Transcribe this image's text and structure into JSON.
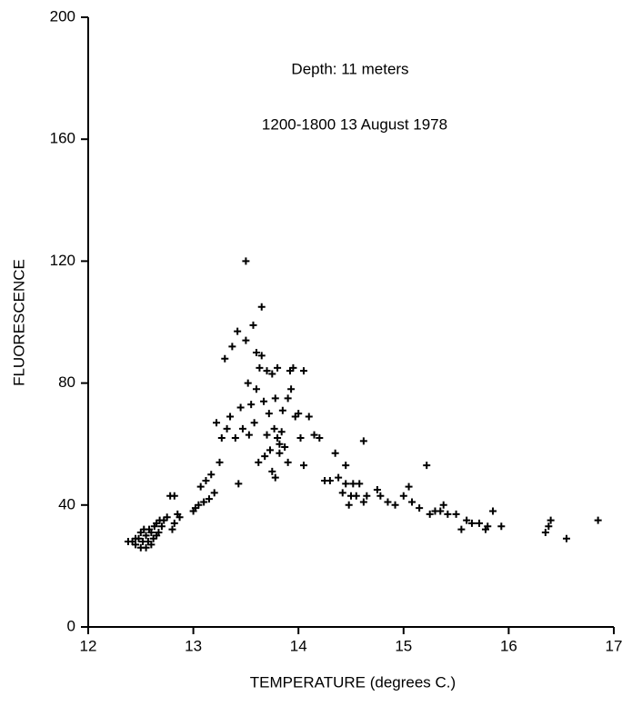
{
  "chart_data": {
    "type": "scatter",
    "annotations": [
      "Depth: 11 meters",
      "1200-1800  13 August 1978"
    ],
    "x_label": "TEMPERATURE (degrees C.)",
    "y_label": "FLUORESCENCE",
    "xlim": [
      12,
      17
    ],
    "xticks": [
      12,
      13,
      14,
      15,
      16,
      17
    ],
    "ylim": [
      0,
      200
    ],
    "yticks": [
      0,
      40,
      80,
      120,
      160,
      200
    ],
    "color": "#000000",
    "x": [
      12.38,
      12.42,
      12.45,
      12.48,
      12.5,
      12.52,
      12.55,
      12.55,
      12.58,
      12.6,
      12.6,
      12.62,
      12.63,
      12.65,
      12.65,
      12.68,
      12.7,
      12.72,
      12.75,
      12.78,
      12.82,
      12.8,
      12.82,
      12.85,
      12.87,
      12.5,
      12.57,
      12.45,
      12.53,
      12.67,
      13.0,
      13.02,
      13.05,
      13.07,
      13.1,
      13.12,
      13.15,
      13.17,
      13.2,
      13.22,
      13.25,
      13.27,
      13.3,
      13.32,
      13.35,
      13.37,
      13.4,
      13.42,
      13.43,
      13.45,
      13.47,
      13.5,
      13.5,
      13.52,
      13.53,
      13.55,
      13.57,
      13.58,
      13.6,
      13.6,
      13.62,
      13.63,
      13.65,
      13.65,
      13.67,
      13.68,
      13.7,
      13.7,
      13.72,
      13.73,
      13.75,
      13.75,
      13.77,
      13.78,
      13.78,
      13.8,
      13.8,
      13.82,
      13.82,
      13.84,
      13.85,
      13.87,
      13.9,
      13.9,
      13.92,
      13.93,
      13.95,
      13.97,
      14.0,
      14.02,
      14.05,
      14.05,
      14.1,
      14.15,
      14.2,
      14.25,
      14.3,
      14.35,
      14.38,
      14.42,
      14.45,
      14.45,
      14.48,
      14.5,
      14.52,
      14.55,
      14.58,
      14.62,
      14.62,
      14.65,
      14.75,
      14.78,
      14.85,
      14.92,
      15.0,
      15.05,
      15.08,
      15.15,
      15.22,
      15.25,
      15.3,
      15.35,
      15.38,
      15.42,
      15.5,
      15.55,
      15.6,
      15.65,
      15.72,
      15.78,
      15.8,
      15.85,
      15.93,
      16.35,
      16.38,
      16.4,
      16.55,
      16.85
    ],
    "values": [
      28,
      28,
      27,
      29,
      26,
      28,
      30,
      26,
      32,
      27,
      31,
      29,
      33,
      30,
      34,
      35,
      33,
      35,
      36,
      43,
      43,
      32,
      34,
      37,
      36,
      31,
      28,
      29,
      32,
      31,
      38,
      39,
      40,
      46,
      41,
      48,
      42,
      50,
      44,
      67,
      54,
      62,
      88,
      65,
      69,
      92,
      62,
      97,
      47,
      72,
      65,
      120,
      94,
      80,
      63,
      73,
      99,
      67,
      78,
      90,
      54,
      85,
      105,
      89,
      74,
      56,
      84,
      63,
      70,
      58,
      83,
      51,
      65,
      49,
      75,
      62,
      85,
      60,
      57,
      64,
      71,
      59,
      75,
      54,
      84,
      78,
      85,
      69,
      70,
      62,
      84,
      53,
      69,
      63,
      62,
      48,
      48,
      57,
      49,
      44,
      47,
      53,
      40,
      43,
      47,
      43,
      47,
      61,
      41,
      43,
      45,
      43,
      41,
      40,
      43,
      46,
      41,
      39,
      53,
      37,
      38,
      38,
      40,
      37,
      37,
      32,
      35,
      34,
      34,
      32,
      33,
      38,
      33,
      31,
      33,
      35,
      29,
      35
    ]
  }
}
